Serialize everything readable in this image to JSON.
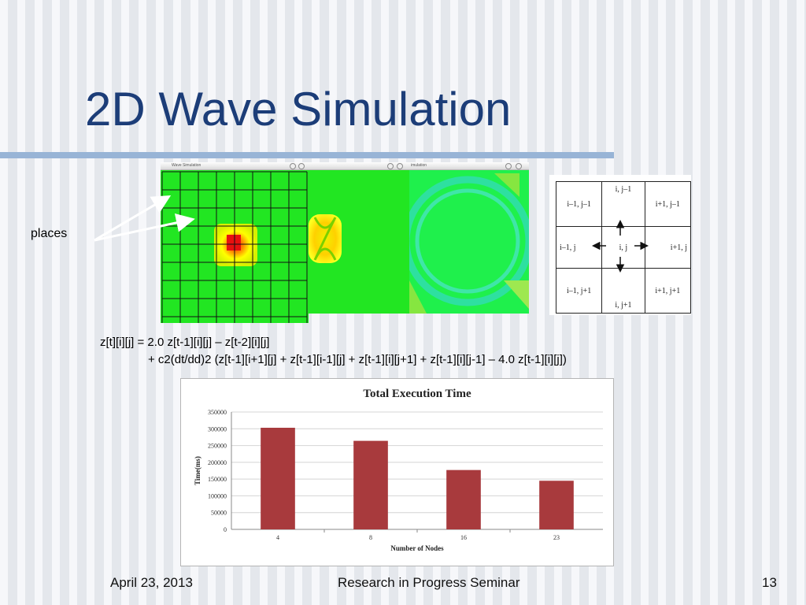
{
  "slide": {
    "title": "2D Wave Simulation",
    "footer_date": "April 23, 2013",
    "footer_center": "Research in Progress Seminar",
    "page_number": "13"
  },
  "windows": {
    "first_title": "Wave Simulation",
    "third_title": "imulation"
  },
  "places_label": "places",
  "stencil": {
    "cells": [
      [
        "i–1, j–1",
        "i, j–1",
        "i+1, j–1"
      ],
      [
        "i–1, j",
        "i, j",
        "i+1, j"
      ],
      [
        "i–1, j+1",
        "i, j+1",
        "i+1, j+1"
      ]
    ]
  },
  "equation": {
    "line1": "z[t][i][j] = 2.0 z[t-1][i][j] – z[t-2][i][j]",
    "line2": "+ c2(dt/dd)2 (z[t-1][i+1][j] + z[t-1][i-1][j] + z[t-1][i][j+1] + z[t-1][i][j-1] – 4.0 z[t-1][i][j])"
  },
  "colors": {
    "title": "#1c3d78",
    "sim_green": "#22e622",
    "bar": "#a83a3d"
  },
  "chart_data": {
    "type": "bar",
    "title": "Total Execution Time",
    "xlabel": "Number  of Nodes",
    "ylabel": "Time(ms)",
    "categories": [
      "4",
      "8",
      "16",
      "23"
    ],
    "values": [
      303000,
      264000,
      177000,
      145000
    ],
    "ylim": [
      0,
      350000
    ],
    "yticks": [
      "0",
      "50000",
      "100000",
      "150000",
      "200000",
      "250000",
      "300000",
      "350000"
    ],
    "grid": true,
    "legend": false
  }
}
